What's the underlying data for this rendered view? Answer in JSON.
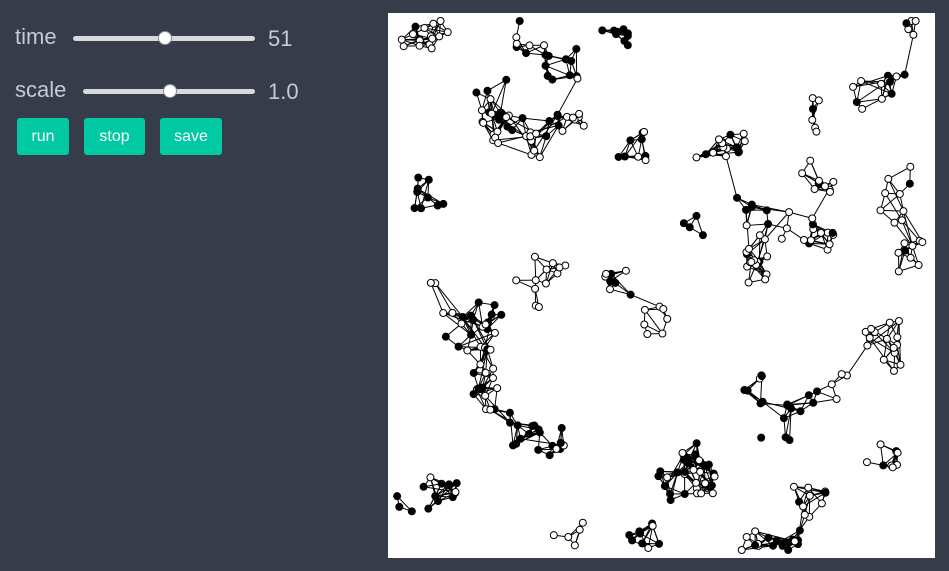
{
  "controls": {
    "time": {
      "label": "time",
      "value": "51",
      "slider_fraction": 0.5
    },
    "scale": {
      "label": "scale",
      "value": "1.0",
      "slider_fraction": 0.5
    },
    "buttons": {
      "run": "run",
      "stop": "stop",
      "save": "save"
    }
  },
  "colors": {
    "background": "#363c4a",
    "accent": "#00c9a3",
    "text": "#c6cad3",
    "canvas": "#ffffff",
    "node_filled": "#000000",
    "node_hollow": "#ffffff",
    "edge": "#000000"
  }
}
